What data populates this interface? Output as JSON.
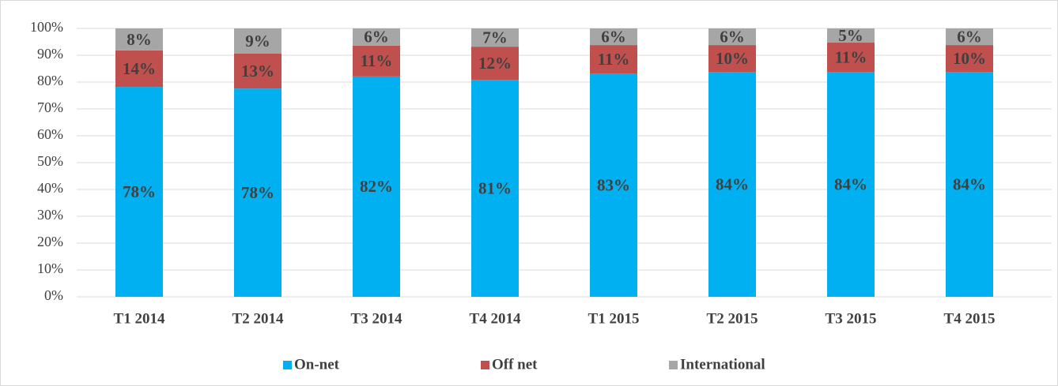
{
  "chart_data": {
    "type": "stacked_bar",
    "categories": [
      "T1 2014",
      "T2 2014",
      "T3 2014",
      "T4 2014",
      "T1 2015",
      "T2 2015",
      "T3 2015",
      "T4 2015"
    ],
    "series": [
      {
        "name": "On-net",
        "color": "#00b0f0",
        "values": [
          78.2,
          77.6,
          82.1,
          80.8,
          83.2,
          83.8,
          83.8,
          83.8
        ],
        "value_labels": [
          "78%",
          "78%",
          "82%",
          "81%",
          "83%",
          "84%",
          "84%",
          "84%"
        ]
      },
      {
        "name": "Off net",
        "color": "#c0504d",
        "values": [
          13.6,
          13.0,
          11.5,
          12.4,
          10.6,
          10.0,
          10.9,
          10.0
        ],
        "value_labels": [
          "14%",
          "13%",
          "11%",
          "12%",
          "11%",
          "10%",
          "11%",
          "10%"
        ]
      },
      {
        "name": "International",
        "color": "#a6a6a6",
        "values": [
          8.2,
          9.4,
          6.4,
          6.8,
          6.2,
          6.2,
          5.3,
          6.2
        ],
        "value_labels": [
          "8%",
          "9%",
          "6%",
          "7%",
          "6%",
          "6%",
          "5%",
          "6%"
        ]
      }
    ],
    "ylim": [
      0,
      100
    ],
    "yticks": [
      {
        "value": 0,
        "label": "0%"
      },
      {
        "value": 10,
        "label": "10%"
      },
      {
        "value": 20,
        "label": "20%"
      },
      {
        "value": 30,
        "label": "30%"
      },
      {
        "value": 40,
        "label": "40%"
      },
      {
        "value": 50,
        "label": "50%"
      },
      {
        "value": 60,
        "label": "60%"
      },
      {
        "value": 70,
        "label": "70%"
      },
      {
        "value": 80,
        "label": "80%"
      },
      {
        "value": 90,
        "label": "90%"
      },
      {
        "value": 100,
        "label": "100%"
      }
    ],
    "grid": true,
    "legend": "bottom"
  }
}
